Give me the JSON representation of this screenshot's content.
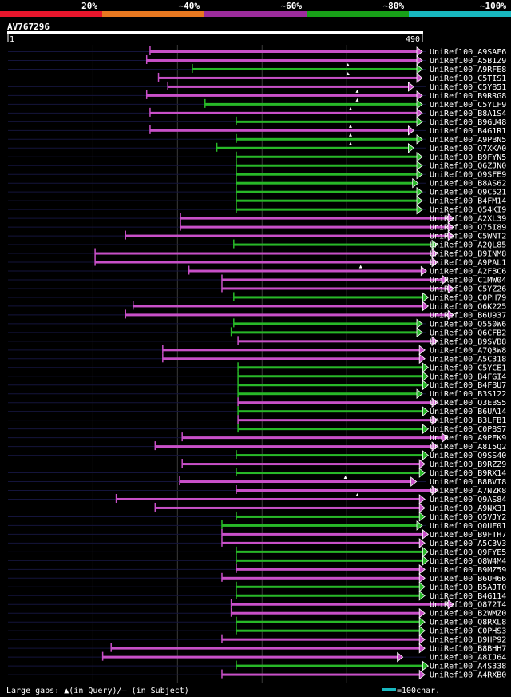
{
  "query": {
    "name": "AV767296",
    "start_label": "1",
    "end_label": "490",
    "length": 490
  },
  "identity_scale": {
    "bands": [
      {
        "label": "20%",
        "color": "#e8162c"
      },
      {
        "label": "~40%",
        "color": "#e87820"
      },
      {
        "label": "~60%",
        "color": "#9c2c9c"
      },
      {
        "label": "~80%",
        "color": "#18a018"
      },
      {
        "label": "~100%",
        "color": "#18b8c0"
      }
    ]
  },
  "colors": {
    "magenta": "#c850c8",
    "green": "#28b828",
    "guide": "#14143c",
    "grid": "#3a3a3a",
    "gap_marker": "#ffffff"
  },
  "footer": {
    "gaps_label": "Large gaps: ",
    "gaps_query": "(in Query)/",
    "gaps_subject_sym": "–",
    "gaps_subject": " (in Subject)",
    "scale_label": "=100char.",
    "scale_color": "#18b8c0"
  },
  "chart_data": {
    "type": "alignment",
    "query_length": 490,
    "hits": [
      {
        "name": "UniRef100_A9SAF6",
        "start": 168,
        "end": 490,
        "color": "magenta",
        "gaps": []
      },
      {
        "name": "UniRef100_A5B1Z9",
        "start": 164,
        "end": 490,
        "color": "magenta",
        "gaps": []
      },
      {
        "name": "UniRef100_A9RFE8",
        "start": 218,
        "end": 490,
        "color": "green",
        "gaps": [
          402
        ]
      },
      {
        "name": "UniRef100_C5TIS1",
        "start": 178,
        "end": 490,
        "color": "magenta",
        "gaps": [
          402
        ]
      },
      {
        "name": "UniRef100_C5YB51",
        "start": 189,
        "end": 480,
        "color": "magenta",
        "gaps": []
      },
      {
        "name": "UniRef100_B9RRG8",
        "start": 164,
        "end": 490,
        "color": "magenta",
        "gaps": [
          413
        ]
      },
      {
        "name": "UniRef100_C5YLF9",
        "start": 233,
        "end": 490,
        "color": "green",
        "gaps": [
          413
        ]
      },
      {
        "name": "UniRef100_B8A1S4",
        "start": 168,
        "end": 490,
        "color": "magenta",
        "gaps": [
          405
        ]
      },
      {
        "name": "UniRef100_B9GU48",
        "start": 270,
        "end": 490,
        "color": "green",
        "gaps": []
      },
      {
        "name": "UniRef100_B4G1R1",
        "start": 168,
        "end": 480,
        "color": "magenta",
        "gaps": [
          405
        ]
      },
      {
        "name": "UniRef100_A9PBN5",
        "start": 270,
        "end": 490,
        "color": "green",
        "gaps": [
          405
        ]
      },
      {
        "name": "UniRef100_Q7XKA0",
        "start": 247,
        "end": 480,
        "color": "green",
        "gaps": [
          405
        ]
      },
      {
        "name": "UniRef100_B9FYN5",
        "start": 270,
        "end": 490,
        "color": "green",
        "gaps": []
      },
      {
        "name": "UniRef100_Q6ZJN0",
        "start": 270,
        "end": 490,
        "color": "green",
        "gaps": []
      },
      {
        "name": "UniRef100_Q9SFE9",
        "start": 270,
        "end": 490,
        "color": "green",
        "gaps": []
      },
      {
        "name": "UniRef100_B8AS62",
        "start": 270,
        "end": 485,
        "color": "green",
        "gaps": []
      },
      {
        "name": "UniRef100_Q9C521",
        "start": 270,
        "end": 490,
        "color": "green",
        "gaps": []
      },
      {
        "name": "UniRef100_B4FM14",
        "start": 270,
        "end": 490,
        "color": "green",
        "gaps": []
      },
      {
        "name": "UniRef100_Q54KI9",
        "start": 270,
        "end": 490,
        "color": "green",
        "gaps": []
      },
      {
        "name": "UniRef100_A2XL39",
        "start": 204,
        "end": 527,
        "color": "magenta",
        "gaps": []
      },
      {
        "name": "UniRef100_Q75I89",
        "start": 204,
        "end": 527,
        "color": "magenta",
        "gaps": []
      },
      {
        "name": "UniRef100_C5WNT2",
        "start": 139,
        "end": 527,
        "color": "magenta",
        "gaps": []
      },
      {
        "name": "UniRef100_A2QL85",
        "start": 267,
        "end": 508,
        "color": "green",
        "gaps": []
      },
      {
        "name": "UniRef100_B9INM8",
        "start": 103,
        "end": 508,
        "color": "magenta",
        "gaps": []
      },
      {
        "name": "UniRef100_A9PAL1",
        "start": 103,
        "end": 508,
        "color": "magenta",
        "gaps": []
      },
      {
        "name": "UniRef100_A2FBC6",
        "start": 214,
        "end": 495,
        "color": "magenta",
        "gaps": [
          417
        ]
      },
      {
        "name": "UniRef100_C1MW04",
        "start": 253,
        "end": 520,
        "color": "magenta",
        "gaps": []
      },
      {
        "name": "UniRef100_C5YZ26",
        "start": 253,
        "end": 527,
        "color": "magenta",
        "gaps": []
      },
      {
        "name": "UniRef100_C0PH79",
        "start": 267,
        "end": 497,
        "color": "green",
        "gaps": []
      },
      {
        "name": "UniRef100_Q6K225",
        "start": 148,
        "end": 497,
        "color": "magenta",
        "gaps": []
      },
      {
        "name": "UniRef100_B6U937",
        "start": 139,
        "end": 527,
        "color": "magenta",
        "gaps": []
      },
      {
        "name": "UniRef100_Q550W6",
        "start": 267,
        "end": 490,
        "color": "green",
        "gaps": []
      },
      {
        "name": "UniRef100_Q6CFB2",
        "start": 264,
        "end": 490,
        "color": "green",
        "gaps": []
      },
      {
        "name": "UniRef100_B9SVB8",
        "start": 272,
        "end": 508,
        "color": "magenta",
        "gaps": []
      },
      {
        "name": "UniRef100_A7Q3W8",
        "start": 183,
        "end": 493,
        "color": "magenta",
        "gaps": []
      },
      {
        "name": "UniRef100_A5C318",
        "start": 183,
        "end": 493,
        "color": "magenta",
        "gaps": []
      },
      {
        "name": "UniRef100_C5YCE1",
        "start": 272,
        "end": 497,
        "color": "green",
        "gaps": []
      },
      {
        "name": "UniRef100_B4FGI4",
        "start": 272,
        "end": 497,
        "color": "green",
        "gaps": []
      },
      {
        "name": "UniRef100_B4FBU7",
        "start": 272,
        "end": 497,
        "color": "green",
        "gaps": []
      },
      {
        "name": "UniRef100_B3S122",
        "start": 272,
        "end": 490,
        "color": "green",
        "gaps": []
      },
      {
        "name": "UniRef100_Q3EBS5",
        "start": 272,
        "end": 508,
        "color": "magenta",
        "gaps": []
      },
      {
        "name": "UniRef100_B6UA14",
        "start": 272,
        "end": 497,
        "color": "green",
        "gaps": []
      },
      {
        "name": "UniRef100_B3LFB1",
        "start": 272,
        "end": 508,
        "color": "magenta",
        "gaps": []
      },
      {
        "name": "UniRef100_C0P8S7",
        "start": 272,
        "end": 497,
        "color": "green",
        "gaps": []
      },
      {
        "name": "UniRef100_A9PEK9",
        "start": 206,
        "end": 520,
        "color": "magenta",
        "gaps": []
      },
      {
        "name": "UniRef100_A8I5Q2",
        "start": 174,
        "end": 508,
        "color": "magenta",
        "gaps": []
      },
      {
        "name": "UniRef100_Q9SS40",
        "start": 270,
        "end": 497,
        "color": "green",
        "gaps": []
      },
      {
        "name": "UniRef100_B9RZZ9",
        "start": 206,
        "end": 493,
        "color": "magenta",
        "gaps": []
      },
      {
        "name": "UniRef100_B9RX14",
        "start": 270,
        "end": 493,
        "color": "green",
        "gaps": []
      },
      {
        "name": "UniRef100_B8BVI8",
        "start": 203,
        "end": 483,
        "color": "magenta",
        "gaps": [
          399
        ]
      },
      {
        "name": "UniRef100_A7NZK8",
        "start": 270,
        "end": 508,
        "color": "magenta",
        "gaps": []
      },
      {
        "name": "UniRef100_Q9AS84",
        "start": 128,
        "end": 493,
        "color": "magenta",
        "gaps": [
          413
        ]
      },
      {
        "name": "UniRef100_A9NX31",
        "start": 174,
        "end": 493,
        "color": "magenta",
        "gaps": []
      },
      {
        "name": "UniRef100_Q5VJY2",
        "start": 270,
        "end": 493,
        "color": "green",
        "gaps": []
      },
      {
        "name": "UniRef100_Q0UF01",
        "start": 253,
        "end": 490,
        "color": "green",
        "gaps": []
      },
      {
        "name": "UniRef100_B9FTH7",
        "start": 253,
        "end": 497,
        "color": "magenta",
        "gaps": []
      },
      {
        "name": "UniRef100_A5C3V3",
        "start": 253,
        "end": 493,
        "color": "magenta",
        "gaps": []
      },
      {
        "name": "UniRef100_Q9FYE5",
        "start": 270,
        "end": 497,
        "color": "green",
        "gaps": []
      },
      {
        "name": "UniRef100_Q8W4M4",
        "start": 270,
        "end": 497,
        "color": "green",
        "gaps": []
      },
      {
        "name": "UniRef100_B9MZ59",
        "start": 270,
        "end": 493,
        "color": "magenta",
        "gaps": []
      },
      {
        "name": "UniRef100_B6UH66",
        "start": 253,
        "end": 493,
        "color": "magenta",
        "gaps": []
      },
      {
        "name": "UniRef100_B5AJT0",
        "start": 270,
        "end": 493,
        "color": "green",
        "gaps": []
      },
      {
        "name": "UniRef100_B4G114",
        "start": 270,
        "end": 493,
        "color": "green",
        "gaps": []
      },
      {
        "name": "UniRef100_Q872T4",
        "start": 264,
        "end": 527,
        "color": "magenta",
        "gaps": []
      },
      {
        "name": "UniRef100_B2WMZ0",
        "start": 264,
        "end": 493,
        "color": "magenta",
        "gaps": []
      },
      {
        "name": "UniRef100_Q8RXL8",
        "start": 270,
        "end": 493,
        "color": "green",
        "gaps": []
      },
      {
        "name": "UniRef100_C0PHS3",
        "start": 270,
        "end": 493,
        "color": "green",
        "gaps": []
      },
      {
        "name": "UniRef100_B9HP92",
        "start": 253,
        "end": 493,
        "color": "magenta",
        "gaps": []
      },
      {
        "name": "UniRef100_B8BHH7",
        "start": 122,
        "end": 493,
        "color": "magenta",
        "gaps": []
      },
      {
        "name": "UniRef100_A8IJ64",
        "start": 112,
        "end": 467,
        "color": "magenta",
        "gaps": []
      },
      {
        "name": "UniRef100_A4S338",
        "start": 270,
        "end": 497,
        "color": "green",
        "gaps": []
      },
      {
        "name": "UniRef100_A4RXB0",
        "start": 253,
        "end": 493,
        "color": "magenta",
        "gaps": []
      }
    ]
  }
}
